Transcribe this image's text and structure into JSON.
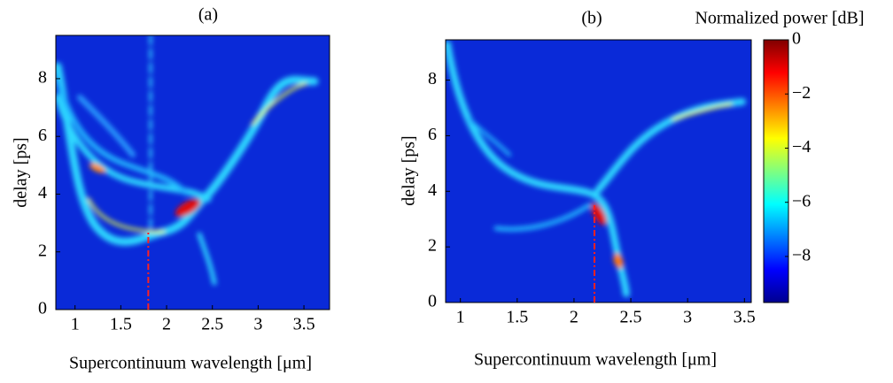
{
  "chart_data": [
    {
      "type": "heatmap",
      "title": "(a)",
      "xlabel": "Supercontinuum wavelength [μm]",
      "ylabel": "delay [ps]",
      "xlim": [
        0.79,
        3.78
      ],
      "ylim": [
        0,
        9.5
      ],
      "xticks": [
        1,
        1.5,
        2,
        2.5,
        3,
        3.5
      ],
      "yticks": [
        0,
        2,
        4,
        6,
        8
      ],
      "colormap": "jet",
      "markers": [
        {
          "x": 1.8,
          "y": [
            0,
            2.7
          ],
          "color": "#ff2020"
        }
      ]
    },
    {
      "type": "heatmap",
      "title": "(b)",
      "xlabel": "Supercontinuum wavelength [μm]",
      "ylabel": "delay [ps]",
      "xlim": [
        0.87,
        3.56
      ],
      "ylim": [
        0,
        9.45
      ],
      "xticks": [
        1,
        1.5,
        2,
        2.5,
        3,
        3.5
      ],
      "yticks": [
        0,
        2,
        4,
        6,
        8
      ],
      "colormap": "jet",
      "markers": [
        {
          "x": 2.18,
          "y": [
            0,
            3.5
          ],
          "color": "#ff2020"
        }
      ],
      "colorbar": {
        "label": "Normalized power [dB]",
        "lim": [
          -9.7,
          0
        ],
        "ticks": [
          0,
          {
            "value": -2,
            "label": "−2"
          },
          {
            "value": -4,
            "label": "−4"
          },
          {
            "value": -6,
            "label": "−6"
          },
          {
            "value": -8,
            "label": "−8"
          }
        ]
      }
    }
  ]
}
